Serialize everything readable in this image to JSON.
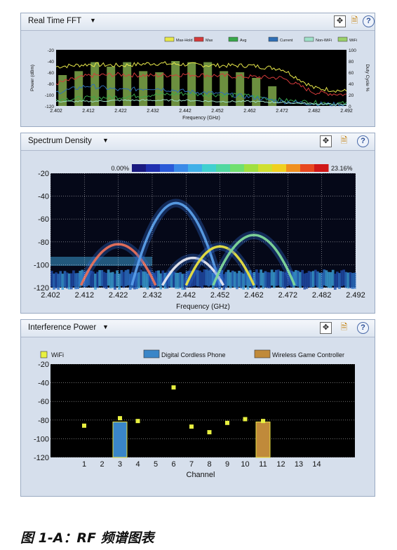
{
  "caption": "图 1-A：RF 频谱图表",
  "panels": {
    "fft": {
      "title": "Real Time FFT",
      "dropdown": "▼"
    },
    "density": {
      "title": "Spectrum Density",
      "dropdown": "▼"
    },
    "interference": {
      "title": "Interference Power",
      "dropdown": "▼"
    }
  },
  "toolbar": {
    "fit": "✥",
    "export": "🗎",
    "help": "?"
  },
  "chart_data": [
    {
      "type": "line",
      "title": "Real Time FFT",
      "xlabel": "Frequency (GHz)",
      "ylabel": "Power (dBm)",
      "y2label": "Duty Cycle %",
      "xlim": [
        2.402,
        2.492
      ],
      "ylim": [
        -120,
        -20
      ],
      "y2lim": [
        0,
        100
      ],
      "x_ticks": [
        "2.402",
        "2.412",
        "2.422",
        "2.432",
        "2.442",
        "2.452",
        "2.462",
        "2.472",
        "2.482",
        "2.492"
      ],
      "y_ticks": [
        "-20",
        "-40",
        "-60",
        "-80",
        "-100",
        "-120"
      ],
      "y2_ticks": [
        "100",
        "80",
        "60",
        "40",
        "20",
        "0"
      ],
      "legend": [
        "Max-Hold",
        "Max",
        "Avg",
        "Current",
        "Non-WiFi",
        "WiFi"
      ],
      "legend_colors": [
        "#e8e84a",
        "#d43a3a",
        "#39a84a",
        "#2f6fb6",
        "#9fe0c8",
        "#9ad06a"
      ],
      "x": [
        2.402,
        2.412,
        2.422,
        2.432,
        2.442,
        2.452,
        2.462,
        2.472,
        2.482,
        2.492
      ],
      "series": [
        {
          "name": "Max-Hold",
          "values": [
            -50,
            -46,
            -48,
            -44,
            -46,
            -48,
            -48,
            -54,
            -88,
            -94
          ]
        },
        {
          "name": "Max",
          "values": [
            -80,
            -66,
            -64,
            -66,
            -64,
            -66,
            -68,
            -70,
            -96,
            -100
          ]
        },
        {
          "name": "Avg",
          "values": [
            -108,
            -106,
            -104,
            -100,
            -98,
            -100,
            -102,
            -110,
            -114,
            -116
          ]
        },
        {
          "name": "Current",
          "values": [
            -96,
            -84,
            -92,
            -88,
            -94,
            -98,
            -104,
            -112,
            -116,
            -118
          ]
        },
        {
          "name": "Non-WiFi",
          "values": [
            -112,
            -112,
            -110,
            -110,
            -110,
            -112,
            -112,
            -114,
            -116,
            -118
          ]
        }
      ],
      "wifi_duty_bars": {
        "x": [
          2.404,
          2.409,
          2.414,
          2.419,
          2.424,
          2.429,
          2.434,
          2.439,
          2.444,
          2.449,
          2.454,
          2.459,
          2.464,
          2.469
        ],
        "values": [
          55,
          62,
          78,
          70,
          78,
          62,
          60,
          80,
          78,
          78,
          62,
          60,
          50,
          35
        ]
      }
    },
    {
      "type": "heatmap",
      "title": "Spectrum Density",
      "xlabel": "Frequency (GHz)",
      "xlim": [
        2.402,
        2.492
      ],
      "ylim": [
        -120,
        -20
      ],
      "x_ticks": [
        "2.402",
        "2.412",
        "2.422",
        "2.432",
        "2.442",
        "2.452",
        "2.462",
        "2.472",
        "2.482",
        "2.492"
      ],
      "y_ticks": [
        "-20",
        "-40",
        "-60",
        "-80",
        "-100",
        "-120"
      ],
      "colorbar": {
        "min_label": "0.00%",
        "max_label": "23.16%"
      },
      "arcs": [
        {
          "center": 2.422,
          "halfwidth": 0.011,
          "peak": -82,
          "color": "#e8705a"
        },
        {
          "center": 2.439,
          "halfwidth": 0.013,
          "peak": -46,
          "color": "#5a9ee8"
        },
        {
          "center": 2.444,
          "halfwidth": 0.009,
          "peak": -94,
          "color": "#e8e8f0"
        },
        {
          "center": 2.452,
          "halfwidth": 0.01,
          "peak": -84,
          "color": "#e8e040"
        },
        {
          "center": 2.462,
          "halfwidth": 0.012,
          "peak": -74,
          "color": "#7ed89a"
        }
      ]
    },
    {
      "type": "scatter",
      "title": "Interference Power",
      "xlabel": "Channel",
      "ylim": [
        -120,
        -20
      ],
      "x_ticks": [
        "1",
        "2",
        "3",
        "4",
        "5",
        "6",
        "7",
        "8",
        "9",
        "10",
        "11",
        "12",
        "13",
        "14"
      ],
      "y_ticks": [
        "-20",
        "-40",
        "-60",
        "-80",
        "-100",
        "-120"
      ],
      "legend": [
        "WiFi",
        "Digital Cordless Phone",
        "Wireless Game Controller"
      ],
      "legend_colors": [
        "#e8f040",
        "#3a86c8",
        "#c08a3a"
      ],
      "wifi_points": {
        "x": [
          1,
          3,
          4,
          6,
          7,
          8,
          9,
          10,
          11
        ],
        "y": [
          -86,
          -78,
          -81,
          -45,
          -87,
          -93,
          -83,
          -79,
          -81
        ]
      },
      "bars": [
        {
          "name": "Digital Cordless Phone",
          "channel": 3,
          "value": -82
        },
        {
          "name": "Wireless Game Controller",
          "channel": 11,
          "value": -82
        }
      ]
    }
  ]
}
